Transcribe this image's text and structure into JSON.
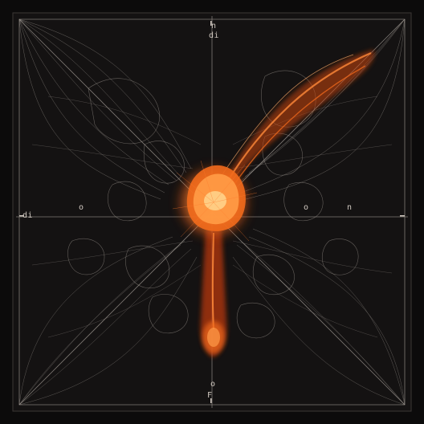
{
  "image": {
    "subject": "abstract cobweb-like net with glowing orange mass",
    "palette": {
      "background": "#0c0b0b",
      "web": "#b9b2aa",
      "web_dim": "#6f6a66",
      "glow_core": "#ffb25a",
      "glow_mid": "#f26a1c",
      "glow_edge": "#a8300e"
    }
  },
  "glyphs": {
    "top_a": "n",
    "top_b": "di",
    "bottom_a": "o",
    "bottom_b": "F",
    "left_a": "di",
    "left_b": "o",
    "right_a": "o",
    "right_b": "n"
  }
}
